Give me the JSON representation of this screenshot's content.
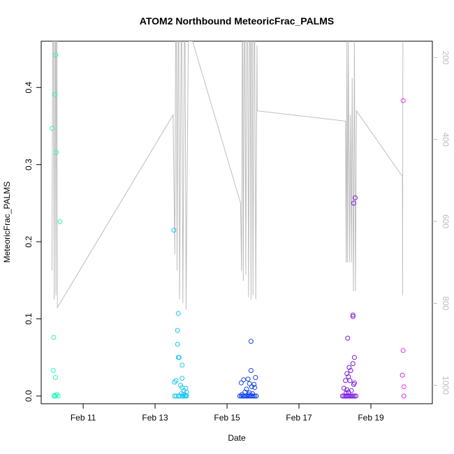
{
  "chart_data": {
    "type": "scatter",
    "title": "ATOM2 Northbound MeteoricFrac_PALMS",
    "xlabel": "Date",
    "ylabel": "MeteoricFrac_PALMS",
    "xlim": [
      "2017-02-09 20:00",
      "2017-02-20 17:00"
    ],
    "ylim": [
      -0.01,
      0.46
    ],
    "y2lim": [
      1045,
      160
    ],
    "x_ticks": [
      {
        "label": "Feb 11",
        "x": "2017-02-11 00:00"
      },
      {
        "label": "Feb 13",
        "x": "2017-02-13 00:00"
      },
      {
        "label": "Feb 15",
        "x": "2017-02-15 00:00"
      },
      {
        "label": "Feb 17",
        "x": "2017-02-17 00:00"
      },
      {
        "label": "Feb 19",
        "x": "2017-02-19 00:00"
      }
    ],
    "y_ticks": [
      {
        "label": "0.0",
        "y": 0.0
      },
      {
        "label": "0.1",
        "y": 0.1
      },
      {
        "label": "0.2",
        "y": 0.2
      },
      {
        "label": "0.3",
        "y": 0.3
      },
      {
        "label": "0.4",
        "y": 0.4
      }
    ],
    "y2_ticks": [
      {
        "label": "200",
        "y": 200
      },
      {
        "label": "400",
        "y": 400
      },
      {
        "label": "600",
        "y": 600
      },
      {
        "label": "800",
        "y": 800
      },
      {
        "label": "1000",
        "y": 1000
      }
    ],
    "colors": {
      "axis": "#000000",
      "pressure_line": "#bdbdbd",
      "pressure_axis": "#bdbdbd"
    },
    "series": [
      {
        "color": "#2ef5c0",
        "points": [
          [
            "2017-02-10 03:20",
            0.347
          ],
          [
            "2017-02-10 05:10",
            0.391
          ],
          [
            "2017-02-10 05:40",
            0.442
          ],
          [
            "2017-02-10 06:00",
            0.316
          ],
          [
            "2017-02-10 08:30",
            0.226
          ],
          [
            "2017-02-10 04:20",
            0.076
          ],
          [
            "2017-02-10 04:00",
            0.033
          ],
          [
            "2017-02-10 05:30",
            0.024
          ],
          [
            "2017-02-10 04:30",
            0.0
          ],
          [
            "2017-02-10 05:40",
            0.0
          ],
          [
            "2017-02-10 06:30",
            0.002
          ],
          [
            "2017-02-10 07:20",
            0.0
          ],
          [
            "2017-02-10 05:00",
            0.001
          ]
        ]
      },
      {
        "color": "#1bc6ee",
        "points": [
          [
            "2017-02-13 12:30",
            0.215
          ],
          [
            "2017-02-13 15:30",
            0.107
          ],
          [
            "2017-02-13 15:00",
            0.085
          ],
          [
            "2017-02-13 15:00",
            0.067
          ],
          [
            "2017-02-13 15:30",
            0.05
          ],
          [
            "2017-02-13 16:00",
            0.05
          ],
          [
            "2017-02-13 18:00",
            0.04
          ],
          [
            "2017-02-13 13:00",
            0.018
          ],
          [
            "2017-02-13 14:00",
            0.02
          ],
          [
            "2017-02-13 18:00",
            0.023
          ],
          [
            "2017-02-13 17:00",
            0.014
          ],
          [
            "2017-02-13 18:00",
            0.011
          ],
          [
            "2017-02-13 20:30",
            0.01
          ],
          [
            "2017-02-13 19:20",
            0.007
          ],
          [
            "2017-02-13 21:00",
            0.005
          ],
          [
            "2017-02-13 17:30",
            0.003
          ],
          [
            "2017-02-13 19:00",
            0.002
          ],
          [
            "2017-02-13 20:30",
            0.001
          ],
          [
            "2017-02-13 13:00",
            0.0
          ],
          [
            "2017-02-13 14:00",
            0.0
          ],
          [
            "2017-02-13 15:30",
            0.0
          ],
          [
            "2017-02-13 16:30",
            0.0
          ],
          [
            "2017-02-13 18:00",
            0.0
          ],
          [
            "2017-02-13 19:00",
            0.0
          ],
          [
            "2017-02-13 20:00",
            0.0
          ],
          [
            "2017-02-13 21:00",
            0.0
          ]
        ]
      },
      {
        "color": "#1346e8",
        "points": [
          [
            "2017-02-15 16:00",
            0.071
          ],
          [
            "2017-02-15 16:00",
            0.033
          ],
          [
            "2017-02-15 19:00",
            0.024
          ],
          [
            "2017-02-15 11:00",
            0.021
          ],
          [
            "2017-02-15 14:00",
            0.022
          ],
          [
            "2017-02-15 09:30",
            0.017
          ],
          [
            "2017-02-15 15:00",
            0.016
          ],
          [
            "2017-02-15 18:00",
            0.015
          ],
          [
            "2017-02-15 16:30",
            0.012
          ],
          [
            "2017-02-15 18:30",
            0.011
          ],
          [
            "2017-02-15 13:00",
            0.009
          ],
          [
            "2017-02-15 12:00",
            0.005
          ],
          [
            "2017-02-15 15:00",
            0.004
          ],
          [
            "2017-02-15 17:00",
            0.003
          ],
          [
            "2017-02-15 10:00",
            0.002
          ],
          [
            "2017-02-15 14:00",
            0.002
          ],
          [
            "2017-02-15 08:30",
            0.0
          ],
          [
            "2017-02-15 09:30",
            0.0
          ],
          [
            "2017-02-15 10:30",
            0.0
          ],
          [
            "2017-02-15 11:30",
            0.0
          ],
          [
            "2017-02-15 12:30",
            0.0
          ],
          [
            "2017-02-15 13:30",
            0.0
          ],
          [
            "2017-02-15 14:30",
            0.0
          ],
          [
            "2017-02-15 15:30",
            0.0
          ],
          [
            "2017-02-15 16:30",
            0.0
          ],
          [
            "2017-02-15 17:30",
            0.0
          ],
          [
            "2017-02-15 18:30",
            0.0
          ],
          [
            "2017-02-15 19:30",
            0.0
          ]
        ]
      },
      {
        "color": "#7a1be0",
        "points": [
          [
            "2017-02-18 12:30",
            0.25
          ],
          [
            "2017-02-18 13:30",
            0.257
          ],
          [
            "2017-02-18 12:00",
            0.105
          ],
          [
            "2017-02-18 12:00",
            0.103
          ],
          [
            "2017-02-18 08:30",
            0.075
          ],
          [
            "2017-02-18 13:00",
            0.05
          ],
          [
            "2017-02-18 12:00",
            0.042
          ],
          [
            "2017-02-18 09:30",
            0.037
          ],
          [
            "2017-02-18 10:30",
            0.033
          ],
          [
            "2017-02-18 08:00",
            0.029
          ],
          [
            "2017-02-18 09:00",
            0.025
          ],
          [
            "2017-02-18 07:00",
            0.02
          ],
          [
            "2017-02-18 10:00",
            0.02
          ],
          [
            "2017-02-18 13:00",
            0.017
          ],
          [
            "2017-02-18 12:30",
            0.015
          ],
          [
            "2017-02-18 06:00",
            0.01
          ],
          [
            "2017-02-18 08:00",
            0.008
          ],
          [
            "2017-02-18 11:00",
            0.007
          ],
          [
            "2017-02-18 07:30",
            0.004
          ],
          [
            "2017-02-18 09:00",
            0.005
          ],
          [
            "2017-02-18 05:00",
            0.0
          ],
          [
            "2017-02-18 06:00",
            0.0
          ],
          [
            "2017-02-18 07:00",
            0.0
          ],
          [
            "2017-02-18 08:00",
            0.0
          ],
          [
            "2017-02-18 09:00",
            0.0
          ],
          [
            "2017-02-18 10:00",
            0.0
          ],
          [
            "2017-02-18 11:00",
            0.0
          ],
          [
            "2017-02-18 12:00",
            0.0
          ],
          [
            "2017-02-18 13:00",
            0.0
          ],
          [
            "2017-02-18 14:00",
            0.0
          ]
        ]
      },
      {
        "color": "#e030ea",
        "points": [
          [
            "2017-02-19 21:30",
            0.383
          ],
          [
            "2017-02-19 21:30",
            0.059
          ],
          [
            "2017-02-19 21:00",
            0.027
          ],
          [
            "2017-02-19 22:00",
            0.012
          ],
          [
            "2017-02-19 22:00",
            0.0
          ]
        ]
      }
    ],
    "pressure_path": [
      [
        "2017-02-10 03:10",
        720
      ],
      [
        "2017-02-10 03:40",
        160
      ],
      [
        "2017-02-10 04:10",
        160
      ],
      [
        "2017-02-10 04:40",
        790
      ],
      [
        "2017-02-10 05:00",
        160
      ],
      [
        "2017-02-10 05:30",
        160
      ],
      [
        "2017-02-10 05:50",
        780
      ],
      [
        "2017-02-10 06:10",
        160
      ],
      [
        "2017-02-10 06:30",
        160
      ],
      [
        "2017-02-10 06:50",
        810
      ],
      [
        "2017-02-13 12:00",
        340
      ],
      [
        "2017-02-13 13:10",
        680
      ],
      [
        "2017-02-13 13:40",
        160
      ],
      [
        "2017-02-13 14:10",
        160
      ],
      [
        "2017-02-13 14:40",
        720
      ],
      [
        "2017-02-13 15:20",
        160
      ],
      [
        "2017-02-13 15:50",
        160
      ],
      [
        "2017-02-13 16:20",
        790
      ],
      [
        "2017-02-13 17:20",
        160
      ],
      [
        "2017-02-13 17:50",
        160
      ],
      [
        "2017-02-13 18:30",
        800
      ],
      [
        "2017-02-13 19:30",
        160
      ],
      [
        "2017-02-13 20:00",
        160
      ],
      [
        "2017-02-13 20:40",
        815
      ],
      [
        "2017-02-13 22:10",
        160
      ],
      [
        "2017-02-14 01:00",
        160
      ],
      [
        "2017-02-15 09:00",
        555
      ],
      [
        "2017-02-15 09:40",
        720
      ],
      [
        "2017-02-15 10:10",
        160
      ],
      [
        "2017-02-15 10:30",
        160
      ],
      [
        "2017-02-15 10:50",
        745
      ],
      [
        "2017-02-15 11:30",
        160
      ],
      [
        "2017-02-15 12:00",
        160
      ],
      [
        "2017-02-15 12:30",
        730
      ],
      [
        "2017-02-15 13:10",
        160
      ],
      [
        "2017-02-15 13:50",
        160
      ],
      [
        "2017-02-15 14:20",
        785
      ],
      [
        "2017-02-15 15:00",
        160
      ],
      [
        "2017-02-15 15:30",
        160
      ],
      [
        "2017-02-15 16:00",
        790
      ],
      [
        "2017-02-15 16:20",
        160
      ],
      [
        "2017-02-15 16:50",
        160
      ],
      [
        "2017-02-15 17:20",
        780
      ],
      [
        "2017-02-15 18:00",
        160
      ],
      [
        "2017-02-15 18:30",
        160
      ],
      [
        "2017-02-15 19:10",
        790
      ],
      [
        "2017-02-15 20:00",
        170
      ],
      [
        "2017-02-15 20:10",
        330
      ],
      [
        "2017-02-18 07:00",
        355
      ],
      [
        "2017-02-18 07:30",
        700
      ],
      [
        "2017-02-18 08:00",
        160
      ],
      [
        "2017-02-18 08:20",
        700
      ],
      [
        "2017-02-18 09:00",
        160
      ],
      [
        "2017-02-18 09:40",
        700
      ],
      [
        "2017-02-18 10:20",
        340
      ],
      [
        "2017-02-18 11:00",
        700
      ],
      [
        "2017-02-18 11:30",
        250
      ],
      [
        "2017-02-18 12:20",
        770
      ],
      [
        "2017-02-18 13:00",
        160
      ],
      [
        "2017-02-18 13:40",
        770
      ],
      [
        "2017-02-18 14:20",
        330
      ],
      [
        "2017-02-19 21:00",
        490
      ],
      [
        "2017-02-19 21:10",
        780
      ],
      [
        "2017-02-19 21:20",
        160
      ]
    ]
  }
}
